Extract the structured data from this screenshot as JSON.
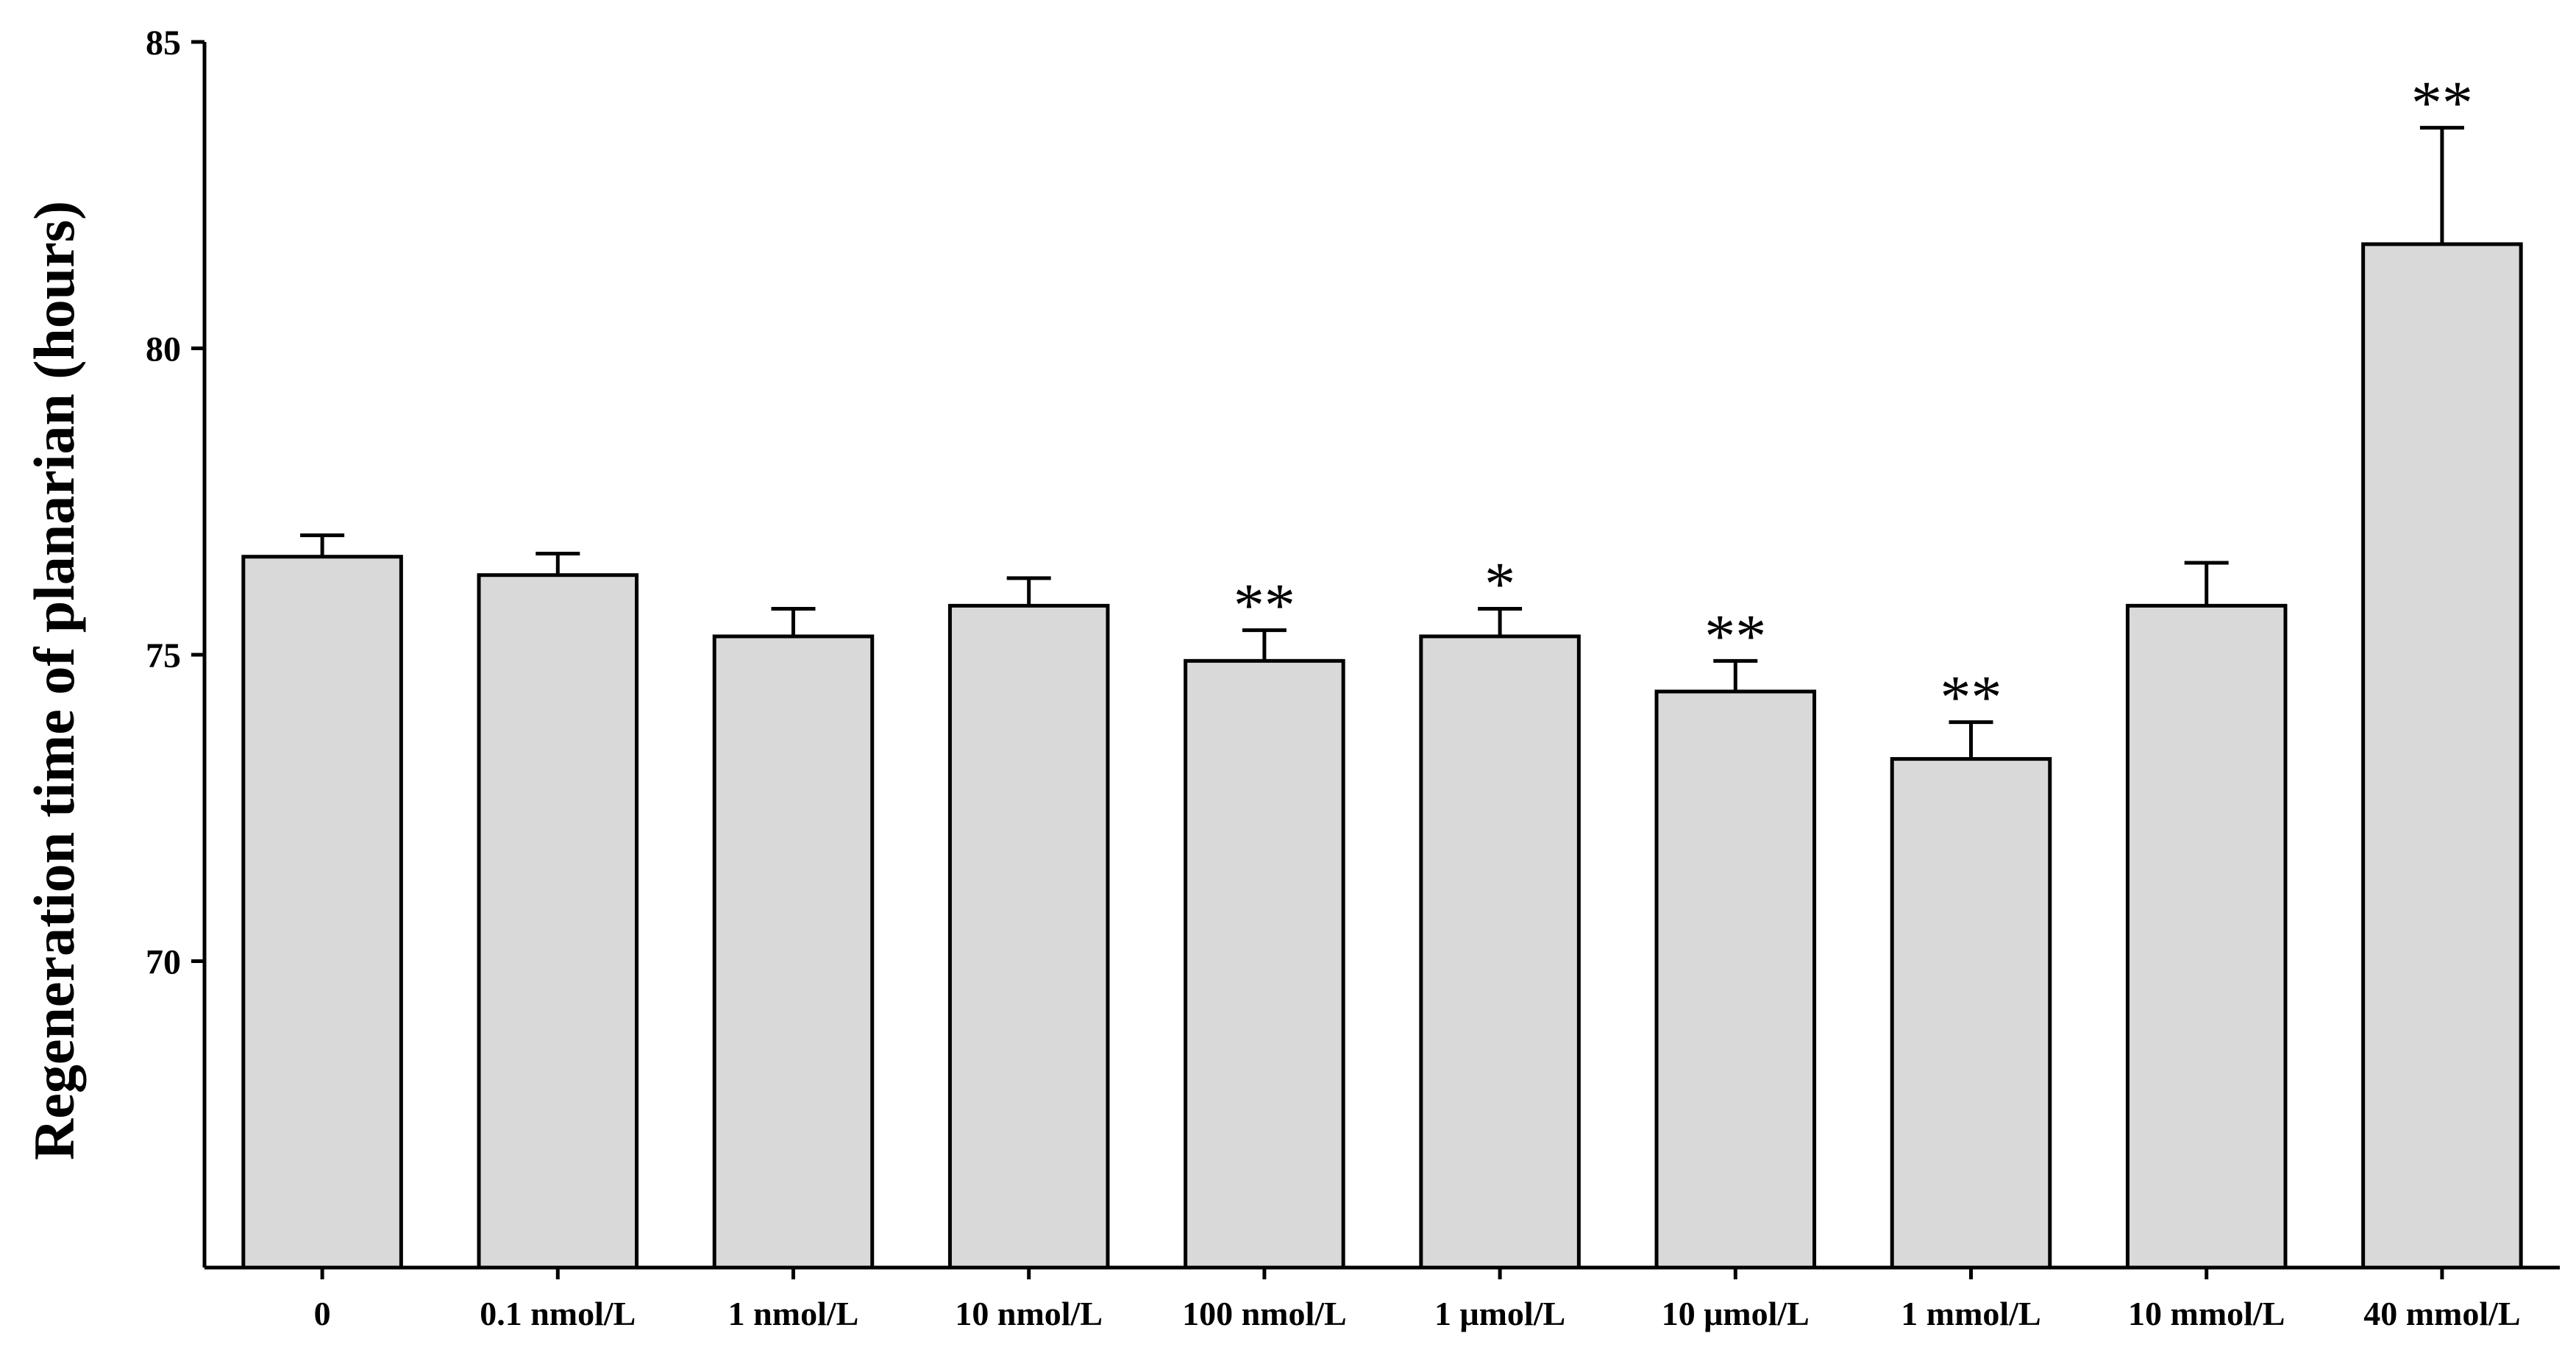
{
  "chart_data": {
    "type": "bar",
    "categories": [
      "0",
      "0.1 nmol/L",
      "1 nmol/L",
      "10 nmol/L",
      "100 nmol/L",
      "1 μmol/L",
      "10 μmol/L",
      "1 mmol/L",
      "10 mmol/L",
      "40 mmol/L"
    ],
    "values": [
      76.6,
      76.3,
      75.3,
      75.8,
      74.9,
      75.3,
      74.4,
      73.3,
      75.8,
      81.7
    ],
    "errors": [
      0.35,
      0.35,
      0.45,
      0.45,
      0.5,
      0.45,
      0.5,
      0.6,
      0.7,
      1.9
    ],
    "significance": [
      "",
      "",
      "",
      "",
      "**",
      "*",
      "**",
      "**",
      "",
      "**"
    ],
    "ylabel": "Regeneration time of planarian (hours)",
    "xlabel": "",
    "ylim": [
      65,
      85
    ],
    "yticks": [
      "70",
      "75",
      "80",
      "85"
    ],
    "ytick_values": [
      70,
      75,
      80,
      85
    ],
    "grid": false,
    "colors": {
      "bar_fill": "#d9d9d9",
      "stroke": "#000000"
    }
  }
}
